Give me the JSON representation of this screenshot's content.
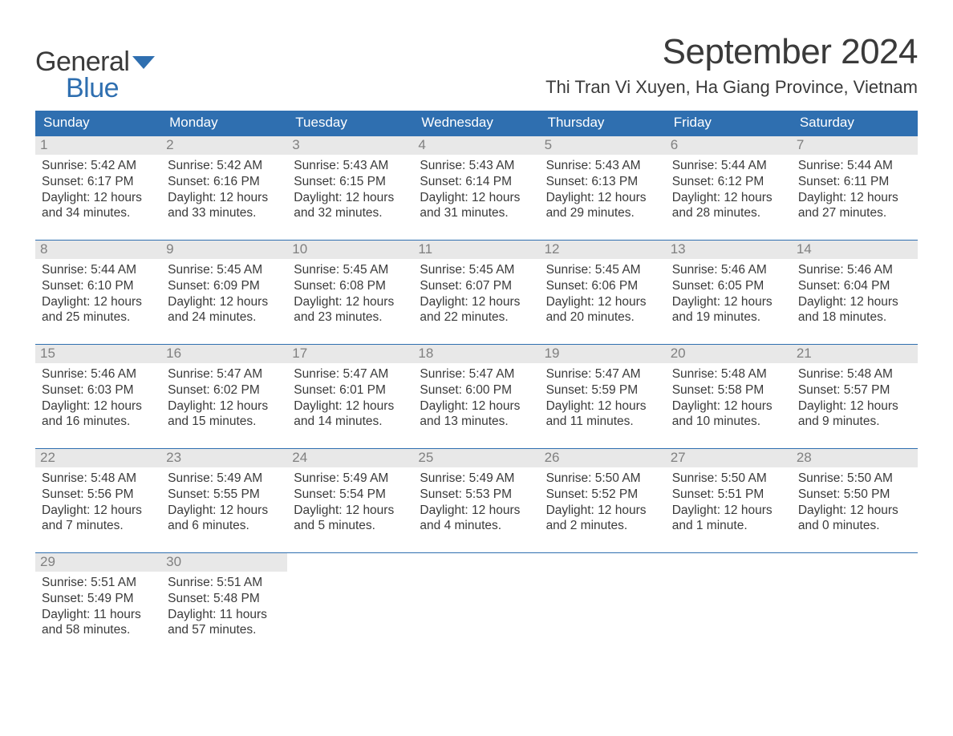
{
  "logo": {
    "text1": "General",
    "text2": "Blue",
    "flag_color": "#2f6fb0"
  },
  "title": "September 2024",
  "location": "Thi Tran Vi Xuyen, Ha Giang Province, Vietnam",
  "colors": {
    "header_bg": "#2f6fb0",
    "header_text": "#ffffff",
    "daynum_bg": "#e8e8e8",
    "daynum_text": "#808080",
    "body_text": "#3a3a3a",
    "week_border": "#2f6fb0"
  },
  "day_headers": [
    "Sunday",
    "Monday",
    "Tuesday",
    "Wednesday",
    "Thursday",
    "Friday",
    "Saturday"
  ],
  "weeks": [
    [
      {
        "n": "1",
        "sr": "5:42 AM",
        "ss": "6:17 PM",
        "dl": "12 hours and 34 minutes."
      },
      {
        "n": "2",
        "sr": "5:42 AM",
        "ss": "6:16 PM",
        "dl": "12 hours and 33 minutes."
      },
      {
        "n": "3",
        "sr": "5:43 AM",
        "ss": "6:15 PM",
        "dl": "12 hours and 32 minutes."
      },
      {
        "n": "4",
        "sr": "5:43 AM",
        "ss": "6:14 PM",
        "dl": "12 hours and 31 minutes."
      },
      {
        "n": "5",
        "sr": "5:43 AM",
        "ss": "6:13 PM",
        "dl": "12 hours and 29 minutes."
      },
      {
        "n": "6",
        "sr": "5:44 AM",
        "ss": "6:12 PM",
        "dl": "12 hours and 28 minutes."
      },
      {
        "n": "7",
        "sr": "5:44 AM",
        "ss": "6:11 PM",
        "dl": "12 hours and 27 minutes."
      }
    ],
    [
      {
        "n": "8",
        "sr": "5:44 AM",
        "ss": "6:10 PM",
        "dl": "12 hours and 25 minutes."
      },
      {
        "n": "9",
        "sr": "5:45 AM",
        "ss": "6:09 PM",
        "dl": "12 hours and 24 minutes."
      },
      {
        "n": "10",
        "sr": "5:45 AM",
        "ss": "6:08 PM",
        "dl": "12 hours and 23 minutes."
      },
      {
        "n": "11",
        "sr": "5:45 AM",
        "ss": "6:07 PM",
        "dl": "12 hours and 22 minutes."
      },
      {
        "n": "12",
        "sr": "5:45 AM",
        "ss": "6:06 PM",
        "dl": "12 hours and 20 minutes."
      },
      {
        "n": "13",
        "sr": "5:46 AM",
        "ss": "6:05 PM",
        "dl": "12 hours and 19 minutes."
      },
      {
        "n": "14",
        "sr": "5:46 AM",
        "ss": "6:04 PM",
        "dl": "12 hours and 18 minutes."
      }
    ],
    [
      {
        "n": "15",
        "sr": "5:46 AM",
        "ss": "6:03 PM",
        "dl": "12 hours and 16 minutes."
      },
      {
        "n": "16",
        "sr": "5:47 AM",
        "ss": "6:02 PM",
        "dl": "12 hours and 15 minutes."
      },
      {
        "n": "17",
        "sr": "5:47 AM",
        "ss": "6:01 PM",
        "dl": "12 hours and 14 minutes."
      },
      {
        "n": "18",
        "sr": "5:47 AM",
        "ss": "6:00 PM",
        "dl": "12 hours and 13 minutes."
      },
      {
        "n": "19",
        "sr": "5:47 AM",
        "ss": "5:59 PM",
        "dl": "12 hours and 11 minutes."
      },
      {
        "n": "20",
        "sr": "5:48 AM",
        "ss": "5:58 PM",
        "dl": "12 hours and 10 minutes."
      },
      {
        "n": "21",
        "sr": "5:48 AM",
        "ss": "5:57 PM",
        "dl": "12 hours and 9 minutes."
      }
    ],
    [
      {
        "n": "22",
        "sr": "5:48 AM",
        "ss": "5:56 PM",
        "dl": "12 hours and 7 minutes."
      },
      {
        "n": "23",
        "sr": "5:49 AM",
        "ss": "5:55 PM",
        "dl": "12 hours and 6 minutes."
      },
      {
        "n": "24",
        "sr": "5:49 AM",
        "ss": "5:54 PM",
        "dl": "12 hours and 5 minutes."
      },
      {
        "n": "25",
        "sr": "5:49 AM",
        "ss": "5:53 PM",
        "dl": "12 hours and 4 minutes."
      },
      {
        "n": "26",
        "sr": "5:50 AM",
        "ss": "5:52 PM",
        "dl": "12 hours and 2 minutes."
      },
      {
        "n": "27",
        "sr": "5:50 AM",
        "ss": "5:51 PM",
        "dl": "12 hours and 1 minute."
      },
      {
        "n": "28",
        "sr": "5:50 AM",
        "ss": "5:50 PM",
        "dl": "12 hours and 0 minutes."
      }
    ],
    [
      {
        "n": "29",
        "sr": "5:51 AM",
        "ss": "5:49 PM",
        "dl": "11 hours and 58 minutes."
      },
      {
        "n": "30",
        "sr": "5:51 AM",
        "ss": "5:48 PM",
        "dl": "11 hours and 57 minutes."
      },
      null,
      null,
      null,
      null,
      null
    ]
  ],
  "labels": {
    "sunrise": "Sunrise:",
    "sunset": "Sunset:",
    "daylight": "Daylight:"
  }
}
